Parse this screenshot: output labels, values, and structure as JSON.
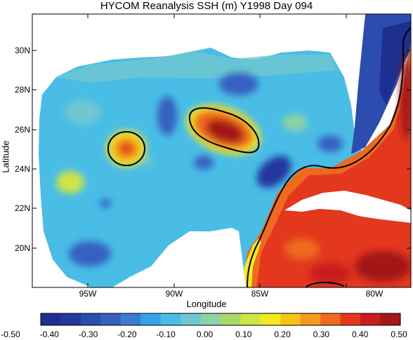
{
  "title": "HYCOM Reanalysis  SSH (m) Y1998 Day 094",
  "axes": {
    "xlabel": "Longitude",
    "ylabel": "Latitude",
    "lon_ticks": [
      "95W",
      "90W",
      "85W",
      "80W"
    ],
    "lat_ticks": [
      "30N",
      "28N",
      "26N",
      "24N",
      "22N",
      "20N"
    ]
  },
  "colorbar": {
    "labels": [
      "-0.50",
      "-0.40",
      "-0.30",
      "-0.20",
      "-0.10",
      "0.00",
      "0.10",
      "0.20",
      "0.30",
      "0.40",
      "0.50"
    ],
    "colors": [
      "#1f2f8f",
      "#24389f",
      "#2d4cb0",
      "#3461c0",
      "#3b7bd2",
      "#33a3e6",
      "#49bde6",
      "#6fc7cf",
      "#8cd3a5",
      "#a6d96a",
      "#d0e544",
      "#f3ea1e",
      "#f8c319",
      "#f59a1d",
      "#ee6a1e",
      "#e3381e",
      "#c81e1e",
      "#a31818"
    ]
  },
  "colors": {
    "land": "#ffffff",
    "ocean_base": "#49bde6"
  }
}
